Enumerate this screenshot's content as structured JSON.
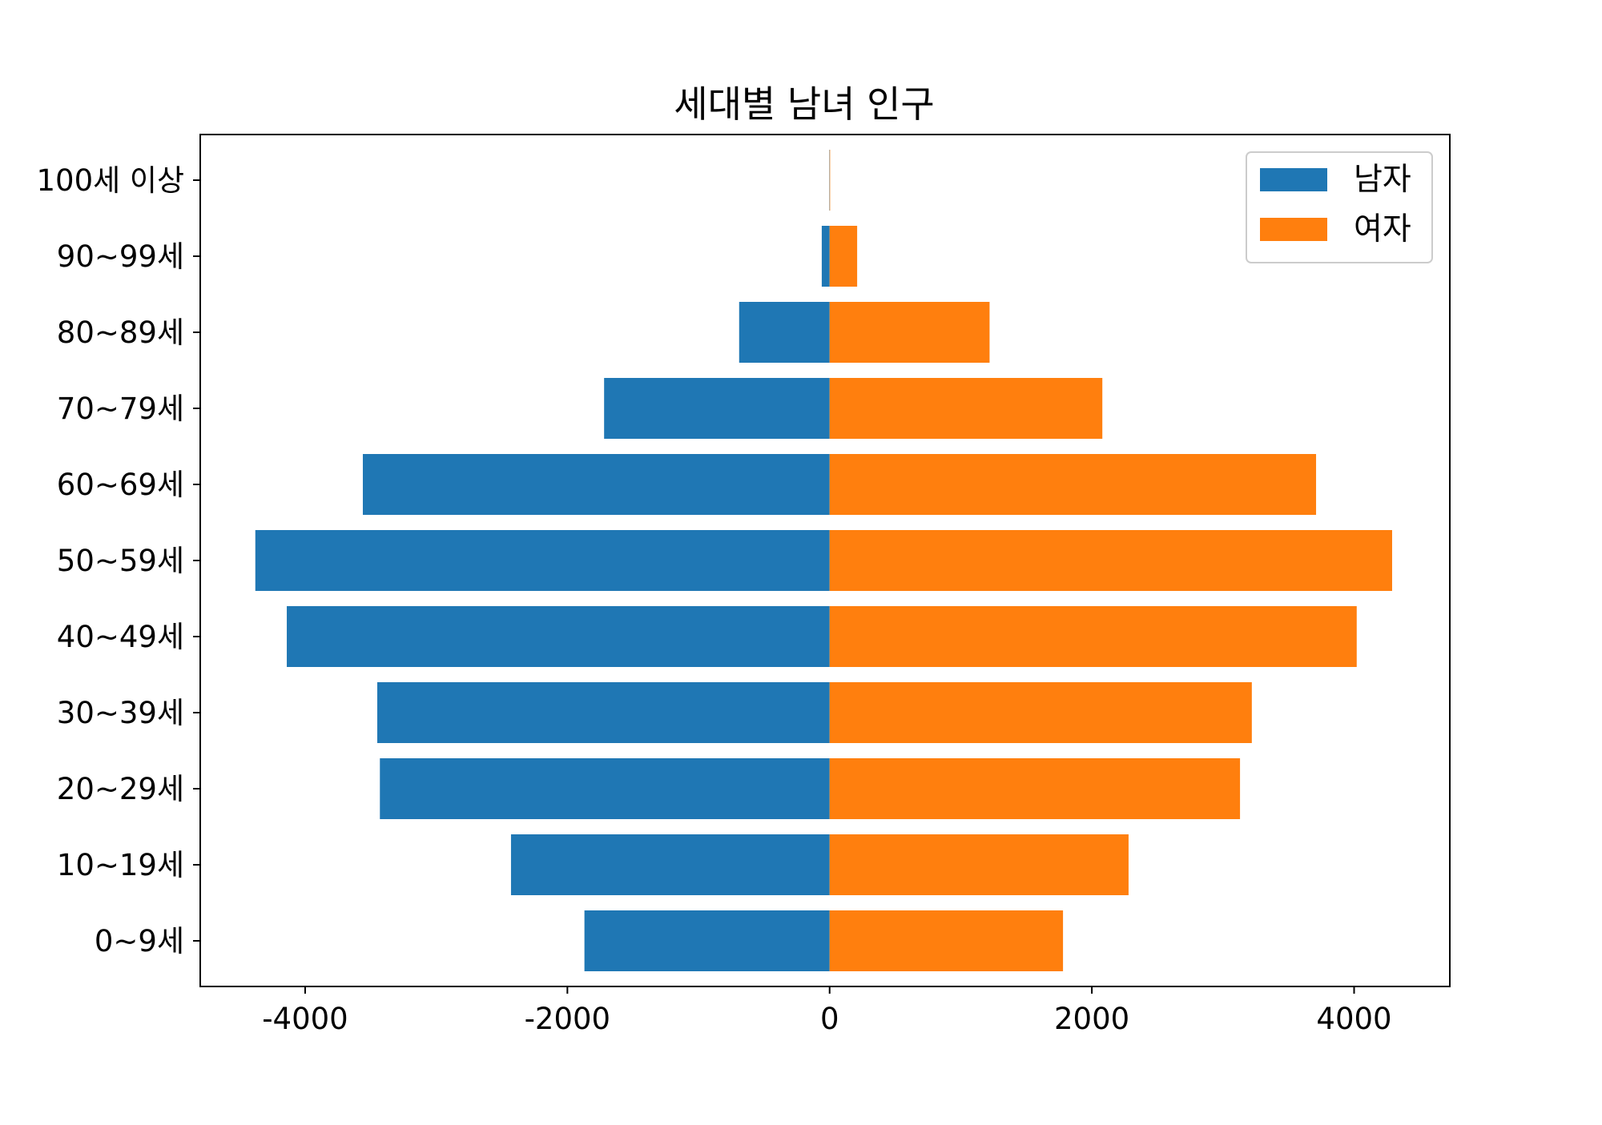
{
  "chart_data": {
    "type": "bar",
    "orientation": "horizontal",
    "title": "세대별 남녀 인구",
    "xlabel": "",
    "ylabel": "",
    "categories": [
      "0~9세",
      "10~19세",
      "20~29세",
      "30~39세",
      "40~49세",
      "50~59세",
      "60~69세",
      "70~79세",
      "80~89세",
      "90~99세",
      "100세 이상"
    ],
    "series": [
      {
        "name": "남자",
        "color": "#1f77b4",
        "values": [
          -1870,
          -2430,
          -3430,
          -3450,
          -4140,
          -4380,
          -3560,
          -1720,
          -690,
          -60,
          -2
        ]
      },
      {
        "name": "여자",
        "color": "#ff7f0e",
        "values": [
          1780,
          2280,
          3130,
          3220,
          4020,
          4290,
          3710,
          2080,
          1220,
          210,
          3
        ]
      }
    ],
    "xlim": [
      -4800,
      4730
    ],
    "xticks": [
      -4000,
      -2000,
      0,
      2000,
      4000
    ],
    "xtick_labels": [
      "-4000",
      "-2000",
      "0",
      "2000",
      "4000"
    ],
    "grid": false,
    "legend_position": "top-right"
  }
}
